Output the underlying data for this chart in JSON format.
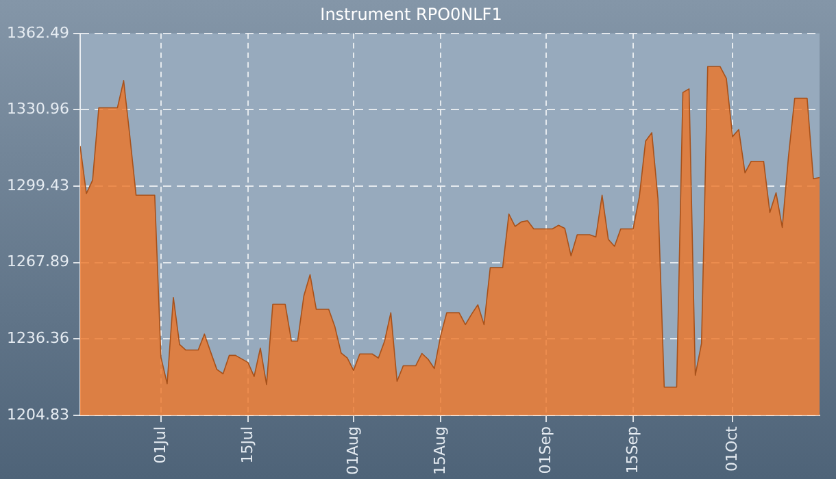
{
  "chart_data": {
    "type": "area",
    "title": "Instrument RPO0NLF1",
    "x": [
      "--06-18",
      "--06-19",
      "--06-20",
      "--06-21",
      "--06-24",
      "--06-25",
      "--06-26",
      "--06-27",
      "--06-30",
      "--07-01",
      "--07-02",
      "--07-03",
      "--07-04",
      "--07-05",
      "--07-07",
      "--07-08",
      "--07-09",
      "--07-10",
      "--07-11",
      "--07-12",
      "--07-13",
      "--07-15",
      "--07-16",
      "--07-17",
      "--07-18",
      "--07-19",
      "--07-21",
      "--07-22",
      "--07-23",
      "--07-24",
      "--07-25",
      "--07-26",
      "--07-28",
      "--07-29",
      "--07-30",
      "--07-31",
      "--08-01",
      "--08-02",
      "--08-04",
      "--08-05",
      "--08-06",
      "--08-07",
      "--08-08",
      "--08-09",
      "--08-11",
      "--08-12",
      "--08-13",
      "--08-14",
      "--08-15",
      "--08-16",
      "--08-18",
      "--08-19",
      "--08-20",
      "--08-21",
      "--08-22",
      "--08-23",
      "--08-25",
      "--08-26",
      "--08-27",
      "--08-28",
      "--08-29",
      "--08-30",
      "--09-02",
      "--09-03",
      "--09-04",
      "--09-05",
      "--09-06",
      "--09-08",
      "--09-09",
      "--09-10",
      "--09-11",
      "--09-12",
      "--09-13",
      "--09-15",
      "--09-16",
      "--09-17",
      "--09-18",
      "--09-19",
      "--09-20",
      "--09-22",
      "--09-23",
      "--09-24",
      "--09-25",
      "--09-26",
      "--09-27",
      "--09-29",
      "--09-30",
      "--10-01",
      "--10-02",
      "--10-03",
      "--10-04",
      "--10-06",
      "--10-07",
      "--10-08",
      "--10-09",
      "--10-10",
      "--10-11",
      "--10-13",
      "--10-14",
      "--10-15"
    ],
    "series": [
      {
        "color": "#ee7425",
        "values": [
          1316.0,
          1296.4,
          1301.9,
          1331.8,
          1331.8,
          1343.0,
          1320.0,
          1295.7,
          1295.7,
          1228.9,
          1217.9,
          1253.5,
          1234.1,
          1231.8,
          1231.8,
          1238.4,
          1231.0,
          1223.8,
          1222.0,
          1229.6,
          1229.6,
          1226.7,
          1220.9,
          1232.6,
          1217.5,
          1250.7,
          1250.7,
          1235.5,
          1235.5,
          1254.1,
          1262.9,
          1248.6,
          1248.6,
          1241.4,
          1230.6,
          1228.5,
          1223.4,
          1230.2,
          1230.2,
          1228.5,
          1235.5,
          1247.2,
          1218.9,
          1225.3,
          1225.3,
          1230.4,
          1228.0,
          1224.2,
          1237.5,
          1247.2,
          1247.2,
          1242.3,
          1246.6,
          1250.5,
          1242.3,
          1265.8,
          1265.8,
          1287.9,
          1282.8,
          1284.7,
          1285.2,
          1281.8,
          1281.8,
          1283.3,
          1282.0,
          1270.7,
          1279.4,
          1279.4,
          1278.5,
          1295.7,
          1277.5,
          1274.6,
          1281.8,
          1281.8,
          1295.1,
          1318.0,
          1321.5,
          1294.1,
          1216.5,
          1216.5,
          1338.1,
          1339.6,
          1221.4,
          1234.5,
          1348.8,
          1348.8,
          1343.9,
          1319.9,
          1322.8,
          1304.9,
          1309.7,
          1309.7,
          1288.6,
          1296.7,
          1282.4,
          1311.7,
          1335.7,
          1335.7,
          1302.5,
          1303.0
        ]
      }
    ],
    "xlim": [
      "--06-18",
      "--10-15"
    ],
    "xticks": [
      {
        "value": "--07-01",
        "label": "01Jul"
      },
      {
        "value": "--07-15",
        "label": "15Jul"
      },
      {
        "value": "--08-01",
        "label": "01Aug"
      },
      {
        "value": "--08-15",
        "label": "15Aug"
      },
      {
        "value": "--09-01",
        "label": "01Sep"
      },
      {
        "value": "--09-15",
        "label": "15Sep"
      },
      {
        "value": "--10-01",
        "label": "01Oct"
      }
    ],
    "ylim": [
      1204.83,
      1362.49
    ],
    "yticks": [
      1204.83,
      1236.36,
      1267.89,
      1299.43,
      1330.96,
      1362.49
    ],
    "grid": true
  }
}
